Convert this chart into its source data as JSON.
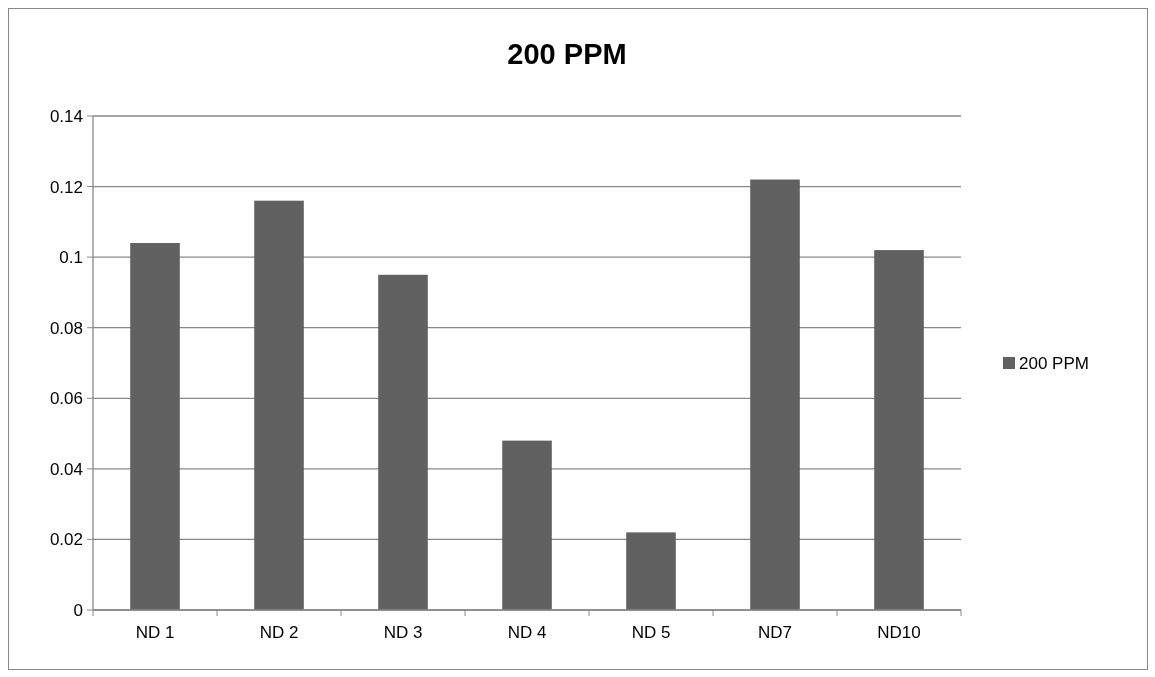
{
  "chart_data": {
    "type": "bar",
    "title": "200 PPM",
    "categories": [
      "ND 1",
      "ND 2",
      "ND 3",
      "ND 4",
      "ND 5",
      "ND7",
      "ND10"
    ],
    "series": [
      {
        "name": "200 PPM",
        "color": "#616161",
        "values": [
          0.104,
          0.116,
          0.095,
          0.048,
          0.022,
          0.122,
          0.102
        ]
      }
    ],
    "ylim": [
      0,
      0.14
    ],
    "yticks": [
      0,
      0.02,
      0.04,
      0.06,
      0.08,
      0.1,
      0.12,
      0.14
    ],
    "grid": "y",
    "legend": "right"
  }
}
